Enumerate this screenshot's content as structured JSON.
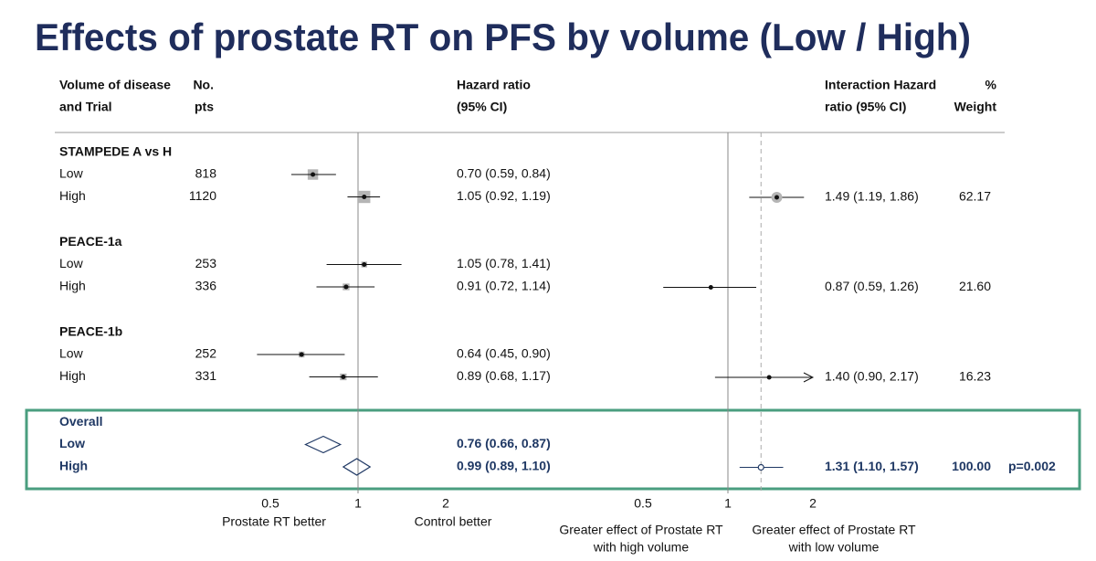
{
  "title": "Effects of prostate RT on PFS by volume (Low / High)",
  "chart_data": {
    "type": "forest",
    "headers": {
      "study": [
        "Volume of disease",
        "and Trial"
      ],
      "n": [
        "No.",
        "pts"
      ],
      "hr": [
        "Hazard ratio",
        "(95% CI)"
      ],
      "interaction": [
        "Interaction Hazard",
        "ratio (95% CI)"
      ],
      "weight": [
        "%",
        "Weight"
      ]
    },
    "panels": [
      {
        "xlim": [
          0.4,
          2.4
        ],
        "xticks": [
          0.5,
          1,
          2
        ],
        "log": true,
        "labels": [
          "Prostate RT better",
          "Control better"
        ]
      },
      {
        "xlim": [
          0.45,
          2
        ],
        "xticks": [
          0.5,
          1,
          2
        ],
        "log": true,
        "labels": [
          [
            "Greater effect of Prostate RT",
            "with high volume"
          ],
          [
            "Greater effect of Prostate RT",
            "with low volume"
          ]
        ]
      }
    ],
    "groups": [
      {
        "name": "STAMPEDE A vs H",
        "rows": [
          {
            "label": "Low",
            "n": 818,
            "hr": 0.7,
            "lo": 0.59,
            "hi": 0.84,
            "ci_label": "0.70 (0.59, 0.84)"
          },
          {
            "label": "High",
            "n": 1120,
            "hr": 1.05,
            "lo": 0.92,
            "hi": 1.19,
            "ci_label": "1.05 (0.92, 1.19)"
          }
        ],
        "interaction": {
          "hr": 1.49,
          "lo": 1.19,
          "hi": 1.86,
          "label": "1.49 (1.19, 1.86)",
          "weight": "62.17"
        }
      },
      {
        "name": "PEACE-1a",
        "rows": [
          {
            "label": "Low",
            "n": 253,
            "hr": 1.05,
            "lo": 0.78,
            "hi": 1.41,
            "ci_label": "1.05 (0.78, 1.41)"
          },
          {
            "label": "High",
            "n": 336,
            "hr": 0.91,
            "lo": 0.72,
            "hi": 1.14,
            "ci_label": "0.91 (0.72, 1.14)"
          }
        ],
        "interaction": {
          "hr": 0.87,
          "lo": 0.59,
          "hi": 1.26,
          "label": "0.87 (0.59, 1.26)",
          "weight": "21.60"
        }
      },
      {
        "name": "PEACE-1b",
        "rows": [
          {
            "label": "Low",
            "n": 252,
            "hr": 0.64,
            "lo": 0.45,
            "hi": 0.9,
            "ci_label": "0.64 (0.45, 0.90)"
          },
          {
            "label": "High",
            "n": 331,
            "hr": 0.89,
            "lo": 0.68,
            "hi": 1.17,
            "ci_label": "0.89 (0.68, 1.17)"
          }
        ],
        "interaction": {
          "hr": 1.4,
          "lo": 0.9,
          "hi": 2.17,
          "label": "1.40 (0.90, 2.17)",
          "weight": "16.23"
        }
      },
      {
        "name": "Overall",
        "summary": true,
        "rows": [
          {
            "label": "Low",
            "hr": 0.76,
            "lo": 0.66,
            "hi": 0.87,
            "ci_label": "0.76 (0.66, 0.87)"
          },
          {
            "label": "High",
            "hr": 0.99,
            "lo": 0.89,
            "hi": 1.1,
            "ci_label": "0.99 (0.89, 1.10)"
          }
        ],
        "interaction": {
          "hr": 1.31,
          "lo": 1.1,
          "hi": 1.57,
          "label": "1.31 (1.10, 1.57)",
          "weight": "100.00",
          "p": "p=0.002"
        }
      }
    ]
  }
}
